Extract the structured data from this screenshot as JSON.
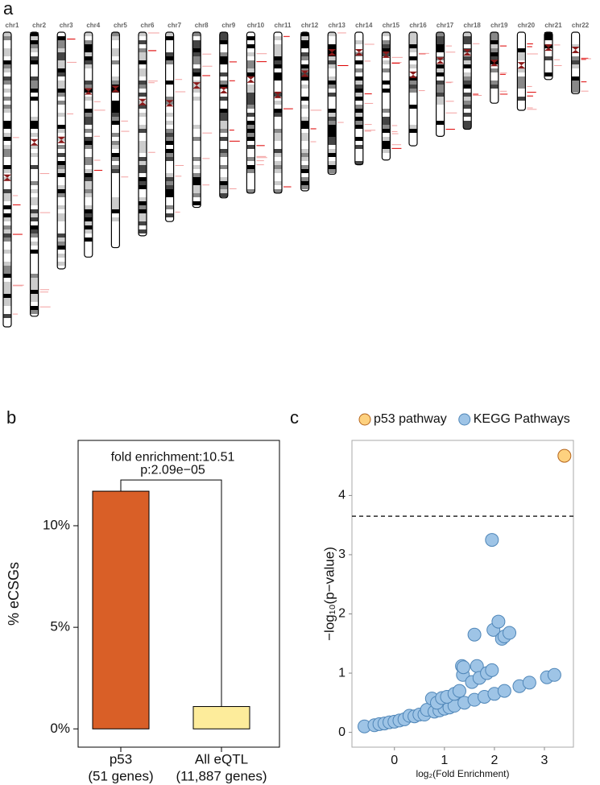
{
  "chart_data": [
    {
      "type": "ideogram",
      "panel_label": "a",
      "categories": [
        "chr1",
        "chr2",
        "chr3",
        "chr4",
        "chr5",
        "chr6",
        "chr7",
        "chr8",
        "chr9",
        "chr10",
        "chr11",
        "chr12",
        "chr13",
        "chr14",
        "chr15",
        "chr16",
        "chr17",
        "chr18",
        "chr19",
        "chr20",
        "chr21",
        "chr22"
      ],
      "values": [
        249,
        240,
        200,
        190,
        182,
        172,
        160,
        148,
        140,
        136,
        136,
        134,
        120,
        112,
        108,
        96,
        88,
        82,
        60,
        66,
        40,
        52
      ],
      "centromere": [
        123,
        93,
        91,
        50,
        48,
        59,
        60,
        45,
        49,
        40,
        53,
        35,
        17,
        17,
        19,
        36,
        24,
        17,
        26,
        28,
        13,
        15
      ]
    },
    {
      "type": "bar",
      "panel_label": "b",
      "categories": [
        "p53",
        "All eQTL"
      ],
      "category_sublabels": [
        "(51 genes)",
        "(11,887 genes)"
      ],
      "values": [
        11.7,
        1.1
      ],
      "colors": [
        "#d95f27",
        "#fdec9b"
      ],
      "ylabel": "% eCSGs",
      "annotations": [
        "fold enrichment:10.51",
        "p:2.09e−05"
      ],
      "ylim": [
        -0.9,
        14.2
      ],
      "yticks": [
        {
          "value": 0,
          "label": "0%"
        },
        {
          "value": 5,
          "label": "5%"
        },
        {
          "value": 10,
          "label": "10%"
        }
      ]
    },
    {
      "type": "scatter",
      "panel_label": "c",
      "xlabel": "log₂(Fold Enrichment)",
      "ylabel": "−log₁₀(p−value)",
      "xlim": [
        -0.85,
        3.58
      ],
      "ylim": [
        -0.25,
        4.93
      ],
      "xticks": [
        0,
        1,
        2,
        3
      ],
      "yticks": [
        0,
        1,
        2,
        3,
        4
      ],
      "hline": 3.65,
      "series": [
        {
          "name": "p53 pathway",
          "color": "#fdd17f",
          "x": [
            3.4
          ],
          "values": [
            4.67
          ]
        },
        {
          "name": "KEGG Pathways",
          "color": "#9ec4e6",
          "x": [
            -0.6,
            -0.4,
            -0.3,
            -0.2,
            -0.1,
            0,
            0.1,
            0.2,
            0.3,
            0.4,
            0.5,
            0.6,
            0.65,
            0.8,
            0.9,
            1,
            1.1,
            1.2,
            1.4,
            1.6,
            1.8,
            2,
            2.2,
            2.5,
            2.7,
            3.05,
            3.2,
            0.75,
            0.85,
            0.95,
            1.05,
            1.2,
            1.3,
            1.35,
            1.37,
            1.38,
            1.55,
            1.6,
            1.65,
            1.7,
            1.85,
            1.95,
            1.95,
            1.98,
            2.08,
            2.15,
            2.2,
            2.3
          ],
          "values": [
            0.1,
            0.12,
            0.14,
            0.15,
            0.17,
            0.18,
            0.2,
            0.22,
            0.28,
            0.27,
            0.3,
            0.3,
            0.38,
            0.35,
            0.37,
            0.4,
            0.42,
            0.45,
            0.5,
            0.55,
            0.6,
            0.65,
            0.7,
            0.78,
            0.84,
            0.93,
            0.97,
            0.57,
            0.5,
            0.58,
            0.6,
            0.65,
            0.7,
            1.12,
            0.97,
            1.1,
            0.85,
            1.65,
            1.12,
            0.92,
            1.0,
            1.05,
            3.25,
            1.73,
            1.87,
            1.58,
            1.62,
            1.68
          ]
        }
      ]
    }
  ]
}
